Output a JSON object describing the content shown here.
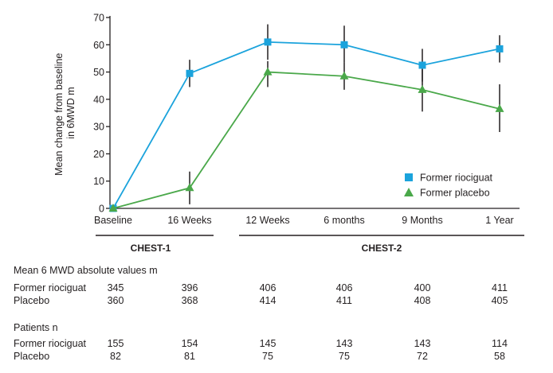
{
  "chart_data": {
    "type": "line",
    "ylabel_line1": "Mean change from baseline",
    "ylabel_line2": "in 6MWD m",
    "ylim": [
      0,
      70
    ],
    "y_ticks": [
      0,
      10,
      20,
      30,
      40,
      50,
      60,
      70
    ],
    "categories": [
      "Baseline",
      "16 Weeks",
      "12 Weeks",
      "6 months",
      "9 Months",
      "1 Year"
    ],
    "series": [
      {
        "name": "Former riociguat",
        "color": "#1ba3dc",
        "marker": "square",
        "values": [
          0,
          49.5,
          61,
          60,
          52.5,
          58.5
        ],
        "err_low": [
          0,
          44.5,
          54.5,
          53.5,
          46.5,
          53.5
        ],
        "err_high": [
          0,
          54.5,
          67.5,
          67,
          58.5,
          63.5
        ]
      },
      {
        "name": "Former placebo",
        "color": "#4aa84a",
        "marker": "triangle",
        "values": [
          0,
          7.5,
          50,
          48.5,
          43.5,
          36.5
        ],
        "err_low": [
          0,
          1.5,
          44.5,
          43.5,
          35.5,
          28
        ],
        "err_high": [
          0,
          13.5,
          54,
          53.5,
          51,
          45.5
        ]
      }
    ],
    "studies": [
      "CHEST-1",
      "CHEST-2"
    ],
    "legend_position": "bottom-right",
    "grid": false
  },
  "table": {
    "mwd_title": "Mean 6 MWD absolute values m",
    "mwd_rows": [
      {
        "label": "Former riociguat",
        "values": [
          "345",
          "396",
          "406",
          "406",
          "400",
          "411"
        ]
      },
      {
        "label": "Placebo",
        "values": [
          "360",
          "368",
          "414",
          "411",
          "408",
          "405"
        ]
      }
    ],
    "patients_title": "Patients n",
    "patient_rows": [
      {
        "label": "Former riociguat",
        "values": [
          "155",
          "154",
          "145",
          "143",
          "143",
          "114"
        ]
      },
      {
        "label": "Placebo",
        "values": [
          "82",
          "81",
          "75",
          "75",
          "72",
          "58"
        ]
      }
    ]
  }
}
